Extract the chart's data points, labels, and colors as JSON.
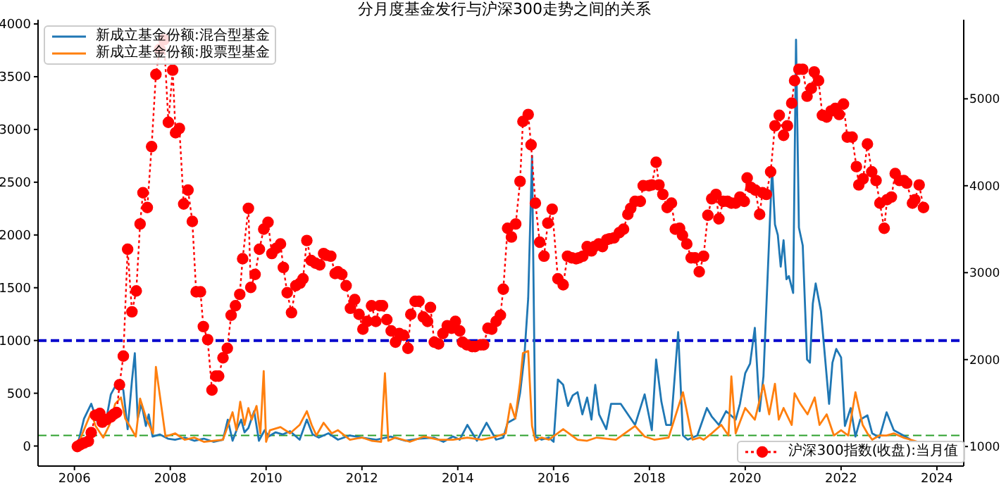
{
  "chart_data": {
    "type": "line",
    "title": "分月度基金发行与沪深300走势之间的关系",
    "xlim": [
      2005.24,
      2024.56
    ],
    "xticks": [
      2006,
      2008,
      2010,
      2012,
      2014,
      2016,
      2018,
      2020,
      2022,
      2024
    ],
    "ylim": [
      -190,
      4040
    ],
    "yticks": [
      0,
      500,
      1000,
      1500,
      2000,
      2500,
      3000,
      3500,
      4000
    ],
    "y2lim": [
      775,
      5910
    ],
    "y2ticks": [
      1000,
      2000,
      3000,
      4000,
      5000
    ],
    "legend": "top left",
    "ref_lines": [
      {
        "axis": "y",
        "value": 1000,
        "color": "#0000cc",
        "line_style": "dashed"
      },
      {
        "axis": "y",
        "value": 100,
        "color": "#2ca02c",
        "line_style": "dashed"
      }
    ],
    "series": [
      {
        "name": "新成立基金份额:混合型基金",
        "color": "#1f77b4",
        "x": [
          2006.06,
          2006.2,
          2006.35,
          2006.5,
          2006.64,
          2006.76,
          2006.88,
          2007.02,
          2007.11,
          2007.2,
          2007.26,
          2007.32,
          2007.4,
          2007.49,
          2007.55,
          2007.63,
          2007.78,
          2007.95,
          2008.1,
          2008.3,
          2008.5,
          2008.7,
          2008.9,
          2009.1,
          2009.2,
          2009.3,
          2009.4,
          2009.48,
          2009.55,
          2009.63,
          2009.75,
          2009.85,
          2009.97,
          2010.05,
          2010.2,
          2010.35,
          2010.5,
          2010.7,
          2010.85,
          2010.97,
          2011.1,
          2011.3,
          2011.5,
          2011.75,
          2012.0,
          2012.3,
          2012.6,
          2012.9,
          2013.2,
          2013.5,
          2013.7,
          2013.9,
          2014.04,
          2014.2,
          2014.4,
          2014.6,
          2014.8,
          2014.95,
          2015.04,
          2015.2,
          2015.3,
          2015.39,
          2015.47,
          2015.55,
          2015.62,
          2015.75,
          2015.9,
          2016.0,
          2016.09,
          2016.2,
          2016.3,
          2016.4,
          2016.5,
          2016.6,
          2016.7,
          2016.79,
          2016.87,
          2016.95,
          2017.1,
          2017.2,
          2017.4,
          2017.7,
          2017.9,
          2018.05,
          2018.14,
          2018.25,
          2018.35,
          2018.45,
          2018.6,
          2018.7,
          2018.8,
          2019.0,
          2019.2,
          2019.3,
          2019.45,
          2019.6,
          2019.8,
          2019.89,
          2020.0,
          2020.1,
          2020.2,
          2020.3,
          2020.38,
          2020.47,
          2020.56,
          2020.62,
          2020.68,
          2020.74,
          2020.8,
          2020.86,
          2020.91,
          2021.0,
          2021.06,
          2021.12,
          2021.2,
          2021.29,
          2021.35,
          2021.41,
          2021.47,
          2021.58,
          2021.75,
          2021.82,
          2021.9,
          2022.0,
          2022.08,
          2022.2,
          2022.3,
          2022.4,
          2022.55,
          2022.65,
          2022.8,
          2022.95,
          2023.1,
          2023.3,
          2023.45
        ],
        "values": [
          0,
          260,
          400,
          200,
          190,
          490,
          590,
          530,
          160,
          620,
          880,
          260,
          400,
          190,
          300,
          90,
          110,
          70,
          60,
          80,
          50,
          70,
          40,
          60,
          250,
          50,
          170,
          250,
          130,
          170,
          330,
          50,
          150,
          90,
          130,
          110,
          140,
          60,
          250,
          110,
          80,
          120,
          60,
          100,
          80,
          60,
          90,
          50,
          70,
          80,
          40,
          90,
          60,
          200,
          50,
          220,
          60,
          80,
          220,
          260,
          500,
          850,
          1400,
          2750,
          90,
          60,
          80,
          40,
          630,
          580,
          380,
          480,
          510,
          300,
          460,
          250,
          580,
          300,
          160,
          400,
          400,
          200,
          490,
          150,
          820,
          420,
          200,
          200,
          1080,
          100,
          60,
          100,
          360,
          280,
          200,
          330,
          250,
          400,
          690,
          780,
          1120,
          330,
          660,
          1640,
          2630,
          2100,
          2000,
          1700,
          1950,
          1580,
          1610,
          1450,
          3850,
          2070,
          1900,
          820,
          790,
          1350,
          1540,
          1280,
          400,
          790,
          920,
          840,
          190,
          360,
          90,
          250,
          290,
          120,
          80,
          320,
          150,
          100,
          60
        ]
      },
      {
        "name": "新成立基金份额:股票型基金",
        "color": "#ff7f0e",
        "x": [
          2006.06,
          2006.35,
          2006.44,
          2006.6,
          2006.73,
          2006.85,
          2006.97,
          2007.06,
          2007.14,
          2007.28,
          2007.37,
          2007.5,
          2007.64,
          2007.7,
          2007.9,
          2008.1,
          2008.3,
          2008.5,
          2008.7,
          2008.9,
          2009.1,
          2009.3,
          2009.38,
          2009.46,
          2009.55,
          2009.63,
          2009.7,
          2009.8,
          2009.88,
          2009.95,
          2010.0,
          2010.08,
          2010.3,
          2010.5,
          2010.7,
          2010.85,
          2010.95,
          2011.05,
          2011.2,
          2011.37,
          2011.5,
          2011.75,
          2012.0,
          2012.2,
          2012.4,
          2012.48,
          2012.55,
          2012.7,
          2013.0,
          2013.3,
          2013.6,
          2013.9,
          2014.2,
          2014.5,
          2014.8,
          2015.0,
          2015.1,
          2015.2,
          2015.3,
          2015.36,
          2015.47,
          2015.55,
          2015.62,
          2015.75,
          2015.9,
          2016.2,
          2016.5,
          2016.7,
          2016.9,
          2017.3,
          2017.7,
          2017.9,
          2018.1,
          2018.4,
          2018.7,
          2018.9,
          2019.05,
          2019.13,
          2019.3,
          2019.5,
          2019.65,
          2019.71,
          2019.8,
          2020.0,
          2020.2,
          2020.38,
          2020.5,
          2020.62,
          2020.7,
          2020.8,
          2020.97,
          2021.03,
          2021.15,
          2021.3,
          2021.45,
          2021.55,
          2021.7,
          2021.85,
          2022.0,
          2022.15,
          2022.3,
          2022.45,
          2022.55,
          2022.65,
          2022.8,
          2022.95,
          2023.1,
          2023.3,
          2023.45,
          2023.6
        ],
        "values": [
          0,
          320,
          190,
          80,
          200,
          400,
          460,
          260,
          200,
          90,
          450,
          260,
          120,
          750,
          90,
          120,
          60,
          80,
          40,
          50,
          60,
          320,
          150,
          420,
          200,
          360,
          250,
          380,
          120,
          710,
          40,
          150,
          180,
          120,
          200,
          330,
          200,
          100,
          220,
          120,
          150,
          60,
          80,
          50,
          40,
          690,
          50,
          80,
          40,
          90,
          60,
          60,
          80,
          60,
          90,
          120,
          400,
          260,
          600,
          880,
          900,
          190,
          50,
          80,
          60,
          160,
          60,
          50,
          80,
          60,
          190,
          90,
          60,
          80,
          510,
          60,
          80,
          60,
          120,
          200,
          100,
          660,
          120,
          360,
          250,
          580,
          300,
          590,
          250,
          360,
          200,
          500,
          400,
          300,
          460,
          200,
          300,
          100,
          150,
          100,
          510,
          200,
          120,
          60,
          100,
          100,
          120,
          80,
          60,
          40
        ]
      },
      {
        "name": "沪深300指数(收盘):当月值",
        "color": "#ff0000",
        "axis": "y2",
        "marker": "circle",
        "line_style": "dotted",
        "x": [
          2006.06,
          2006.12,
          2006.2,
          2006.29,
          2006.35,
          2006.44,
          2006.53,
          2006.58,
          2006.67,
          2006.76,
          2006.82,
          2006.88,
          2006.94,
          2007.02,
          2007.11,
          2007.2,
          2007.29,
          2007.37,
          2007.43,
          2007.52,
          2007.61,
          2007.7,
          2007.78,
          2007.87,
          2007.96,
          2008.05,
          2008.11,
          2008.19,
          2008.28,
          2008.37,
          2008.46,
          2008.54,
          2008.63,
          2008.69,
          2008.78,
          2008.87,
          2008.95,
          2009.01,
          2009.1,
          2009.19,
          2009.27,
          2009.36,
          2009.45,
          2009.51,
          2009.63,
          2009.68,
          2009.77,
          2009.86,
          2009.95,
          2010.04,
          2010.12,
          2010.21,
          2010.3,
          2010.36,
          2010.44,
          2010.53,
          2010.62,
          2010.71,
          2010.77,
          2010.85,
          2010.94,
          2011.03,
          2011.12,
          2011.2,
          2011.26,
          2011.35,
          2011.44,
          2011.5,
          2011.58,
          2011.67,
          2011.76,
          2011.85,
          2011.94,
          2012.02,
          2012.11,
          2012.2,
          2012.29,
          2012.37,
          2012.43,
          2012.52,
          2012.61,
          2012.7,
          2012.78,
          2012.87,
          2012.96,
          2013.02,
          2013.11,
          2013.19,
          2013.28,
          2013.37,
          2013.43,
          2013.51,
          2013.6,
          2013.69,
          2013.78,
          2013.87,
          2013.95,
          2014.04,
          2014.1,
          2014.19,
          2014.3,
          2014.36,
          2014.48,
          2014.54,
          2014.63,
          2014.71,
          2014.8,
          2014.89,
          2014.95,
          2015.04,
          2015.12,
          2015.21,
          2015.3,
          2015.36,
          2015.47,
          2015.53,
          2015.62,
          2015.71,
          2015.8,
          2015.88,
          2015.97,
          2016.09,
          2016.2,
          2016.29,
          2016.38,
          2016.47,
          2016.53,
          2016.61,
          2016.7,
          2016.79,
          2016.85,
          2016.94,
          2017.02,
          2017.11,
          2017.17,
          2017.26,
          2017.37,
          2017.46,
          2017.55,
          2017.61,
          2017.7,
          2017.81,
          2017.87,
          2017.99,
          2018.05,
          2018.14,
          2018.2,
          2018.28,
          2018.37,
          2018.46,
          2018.54,
          2018.63,
          2018.69,
          2018.78,
          2018.87,
          2018.95,
          2019.04,
          2019.13,
          2019.22,
          2019.3,
          2019.39,
          2019.45,
          2019.54,
          2019.63,
          2019.71,
          2019.8,
          2019.89,
          2019.98,
          2020.04,
          2020.12,
          2020.21,
          2020.3,
          2020.36,
          2020.44,
          2020.53,
          2020.62,
          2020.71,
          2020.8,
          2020.88,
          2020.97,
          2021.03,
          2021.12,
          2021.2,
          2021.29,
          2021.38,
          2021.44,
          2021.53,
          2021.61,
          2021.7,
          2021.79,
          2021.88,
          2021.96,
          2022.05,
          2022.13,
          2022.23,
          2022.32,
          2022.37,
          2022.46,
          2022.55,
          2022.64,
          2022.73,
          2022.81,
          2022.9,
          2022.96,
          2023.05,
          2023.13,
          2023.22,
          2023.31,
          2023.37,
          2023.49,
          2023.54,
          2023.63,
          2023.72
        ],
        "values": [
          1000,
          1020,
          1040,
          1060,
          1160,
          1360,
          1380,
          1280,
          1310,
          1340,
          1370,
          1390,
          1710,
          2040,
          3270,
          2550,
          2790,
          3560,
          3920,
          3750,
          4450,
          5280,
          5570,
          5680,
          4730,
          5330,
          4610,
          4660,
          3790,
          3950,
          3590,
          2780,
          2780,
          2380,
          2230,
          1650,
          1810,
          1810,
          2020,
          2130,
          2510,
          2620,
          2750,
          3160,
          3740,
          2830,
          2980,
          3270,
          3500,
          3580,
          3220,
          3280,
          3330,
          3060,
          2770,
          2540,
          2850,
          2880,
          2930,
          3370,
          3140,
          3110,
          3090,
          3220,
          3200,
          3190,
          2990,
          3010,
          2980,
          2850,
          2590,
          2690,
          2520,
          2350,
          2440,
          2620,
          2440,
          2620,
          2620,
          2460,
          2330,
          2200,
          2300,
          2280,
          2130,
          2520,
          2670,
          2670,
          2490,
          2440,
          2600,
          2200,
          2180,
          2300,
          2390,
          2360,
          2440,
          2330,
          2200,
          2170,
          2150,
          2150,
          2170,
          2170,
          2360,
          2350,
          2440,
          2510,
          2810,
          3510,
          3410,
          3560,
          4050,
          4740,
          4820,
          4470,
          3800,
          3350,
          3190,
          3570,
          3730,
          2930,
          2860,
          3190,
          3170,
          3160,
          3170,
          3190,
          3300,
          3250,
          3300,
          3330,
          3300,
          3380,
          3390,
          3400,
          3460,
          3500,
          3670,
          3740,
          3820,
          3820,
          4000,
          4000,
          4010,
          4270,
          4010,
          3900,
          3750,
          3800,
          3500,
          3510,
          3430,
          3330,
          3170,
          3170,
          3010,
          3190,
          3660,
          3850,
          3900,
          3620,
          3820,
          3820,
          3800,
          3800,
          3870,
          3820,
          4090,
          3980,
          3950,
          3670,
          3920,
          3900,
          4160,
          4690,
          4810,
          4580,
          4690,
          4950,
          5210,
          5340,
          5340,
          5030,
          5120,
          5310,
          5210,
          4810,
          4790,
          4860,
          4890,
          4820,
          4940,
          4560,
          4560,
          4220,
          4010,
          4080,
          4480,
          4160,
          4060,
          3800,
          3510,
          3840,
          3870,
          4140,
          4060,
          4060,
          4030,
          3800,
          3840,
          4010,
          3750
        ]
      }
    ]
  }
}
